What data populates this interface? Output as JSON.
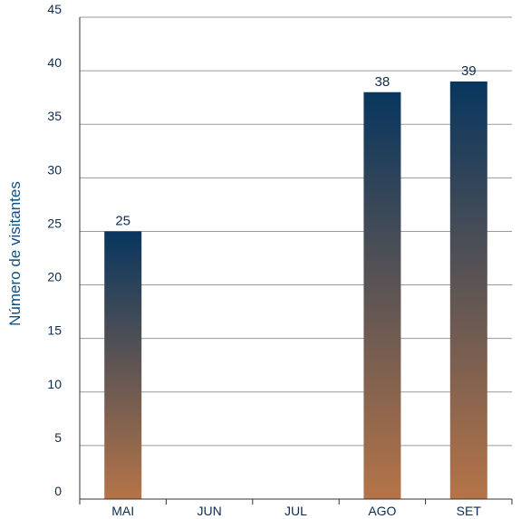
{
  "chart_data": {
    "type": "bar",
    "ylabel": "Número de visitantes",
    "categories": [
      "MAI",
      "JUN",
      "JUL",
      "AGO",
      "SET"
    ],
    "values": [
      25,
      null,
      null,
      38,
      39
    ],
    "data_labels": [
      "25",
      "",
      "",
      "38",
      "39"
    ],
    "yticks": [
      "0",
      "5",
      "10",
      "15",
      "20",
      "25",
      "30",
      "35",
      "40",
      "45"
    ],
    "ylim": [
      0,
      45
    ],
    "grid": true,
    "colors": {
      "bar_top": "#08365f",
      "bar_bottom": "#b57448",
      "text": "#0d2b4e",
      "ylabel": "#0d4f82",
      "grid": "#9a9a9a",
      "axis": "#333333"
    }
  }
}
